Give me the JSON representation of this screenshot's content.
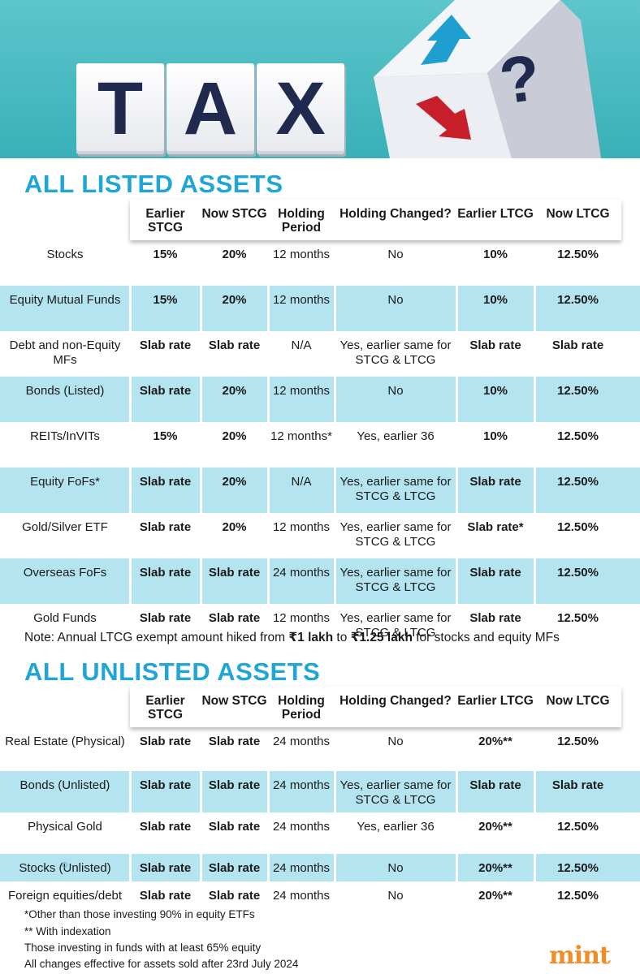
{
  "banner": {
    "letters": [
      "T",
      "A",
      "X"
    ],
    "cube_glyph": "?"
  },
  "listed": {
    "title": "ALL LISTED ASSETS",
    "headers": [
      "",
      "Earlier STCG",
      "Now STCG",
      "Holding Period",
      "Holding Changed?",
      "Earlier LTCG",
      "Now LTCG"
    ],
    "rows": [
      [
        "Stocks",
        "15%",
        "20%",
        "12 months",
        "No",
        "10%",
        "12.50%"
      ],
      [
        "Equity Mutual Funds",
        "15%",
        "20%",
        "12 months",
        "No",
        "10%",
        "12.50%"
      ],
      [
        "Debt and non-Equity MFs",
        "Slab rate",
        "Slab rate",
        "N/A",
        "Yes, earlier same for STCG & LTCG",
        "Slab rate",
        "Slab rate"
      ],
      [
        "Bonds (Listed)",
        "Slab rate",
        "20%",
        "12 months",
        "No",
        "10%",
        "12.50%"
      ],
      [
        "REITs/InVITs",
        "15%",
        "20%",
        "12 months*",
        "Yes, earlier 36",
        "10%",
        "12.50%"
      ],
      [
        "Equity FoFs*",
        "Slab rate",
        "20%",
        "N/A",
        "Yes, earlier same for STCG & LTCG",
        "Slab rate",
        "12.50%"
      ],
      [
        "Gold/Silver ETF",
        "Slab rate",
        "20%",
        "12 months",
        "Yes, earlier same for STCG & LTCG",
        "Slab rate*",
        "12.50%"
      ],
      [
        "Overseas FoFs",
        "Slab rate",
        "Slab rate",
        "24 months",
        "Yes, earlier same for STCG & LTCG",
        "Slab rate",
        "12.50%"
      ],
      [
        "Gold Funds",
        "Slab rate",
        "Slab rate",
        "12 months",
        "Yes, earlier same for STCG & LTCG",
        "Slab rate",
        "12.50%"
      ]
    ]
  },
  "note": {
    "prefix": "Note: Annual LTCG exempt amount hiked from ",
    "from": "₹1 lakh",
    "mid": " to ",
    "to": "₹1.25 lakh",
    "suffix": " for stocks and equity MFs"
  },
  "unlisted": {
    "title": "ALL UNLISTED ASSETS",
    "headers": [
      "",
      "Earlier STCG",
      "Now STCG",
      "Holding Period",
      "Holding Changed?",
      "Earlier LTCG",
      "Now LTCG"
    ],
    "rows": [
      [
        "Real Estate (Physical)",
        "Slab rate",
        "Slab rate",
        "24 months",
        "No",
        "20%**",
        "12.50%"
      ],
      [
        "Bonds (Unlisted)",
        "Slab rate",
        "Slab rate",
        "24 months",
        "Yes, earlier same for STCG & LTCG",
        "Slab rate",
        "Slab rate"
      ],
      [
        "Physical Gold",
        "Slab rate",
        "Slab rate",
        "24 months",
        "Yes, earlier 36",
        "20%**",
        "12.50%"
      ],
      [
        "Stocks (Unlisted)",
        "Slab rate",
        "Slab rate",
        "24 months",
        "No",
        "20%**",
        "12.50%"
      ],
      [
        "Foreign equities/debt",
        "Slab rate",
        "Slab rate",
        "24 months",
        "No",
        "20%**",
        "12.50%"
      ]
    ]
  },
  "footnotes": [
    "*Other than those investing 90% in equity ETFs",
    "** With indexation",
    "Those investing in funds with at least 65% equity",
    "All changes effective for assets sold after 23rd July 2024"
  ],
  "brand": "mint",
  "colors": {
    "accent_blue": "#1fa6d6",
    "row_blue": "#b4e4ef",
    "banner_teal": "#39b0b8",
    "brand_orange": "#f28c28",
    "arrow_up": "#1f9fd0",
    "arrow_down": "#c8202a"
  }
}
